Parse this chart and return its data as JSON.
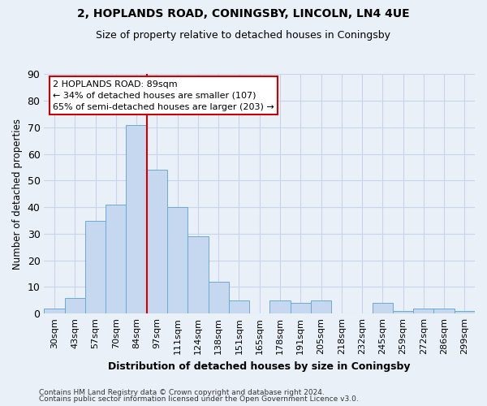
{
  "title_line1": "2, HOPLANDS ROAD, CONINGSBY, LINCOLN, LN4 4UE",
  "title_line2": "Size of property relative to detached houses in Coningsby",
  "xlabel": "Distribution of detached houses by size in Coningsby",
  "ylabel": "Number of detached properties",
  "categories": [
    "30sqm",
    "43sqm",
    "57sqm",
    "70sqm",
    "84sqm",
    "97sqm",
    "111sqm",
    "124sqm",
    "138sqm",
    "151sqm",
    "165sqm",
    "178sqm",
    "191sqm",
    "205sqm",
    "218sqm",
    "232sqm",
    "245sqm",
    "259sqm",
    "272sqm",
    "286sqm",
    "299sqm"
  ],
  "values": [
    2,
    6,
    35,
    41,
    71,
    54,
    40,
    29,
    12,
    5,
    0,
    5,
    4,
    5,
    0,
    0,
    4,
    1,
    2,
    2,
    1
  ],
  "bar_color": "#c5d8f0",
  "bar_edge_color": "#6aaad4",
  "grid_color": "#c8d4e8",
  "background_color": "#eaf0f8",
  "vline_color": "#cc0000",
  "vline_index": 5,
  "annotation_text": "2 HOPLANDS ROAD: 89sqm\n← 34% of detached houses are smaller (107)\n65% of semi-detached houses are larger (203) →",
  "annotation_box_facecolor": "#ffffff",
  "annotation_box_edgecolor": "#cc0000",
  "ylim": [
    0,
    90
  ],
  "yticks": [
    0,
    10,
    20,
    30,
    40,
    50,
    60,
    70,
    80,
    90
  ],
  "footnote1": "Contains HM Land Registry data © Crown copyright and database right 2024.",
  "footnote2": "Contains public sector information licensed under the Open Government Licence v3.0."
}
